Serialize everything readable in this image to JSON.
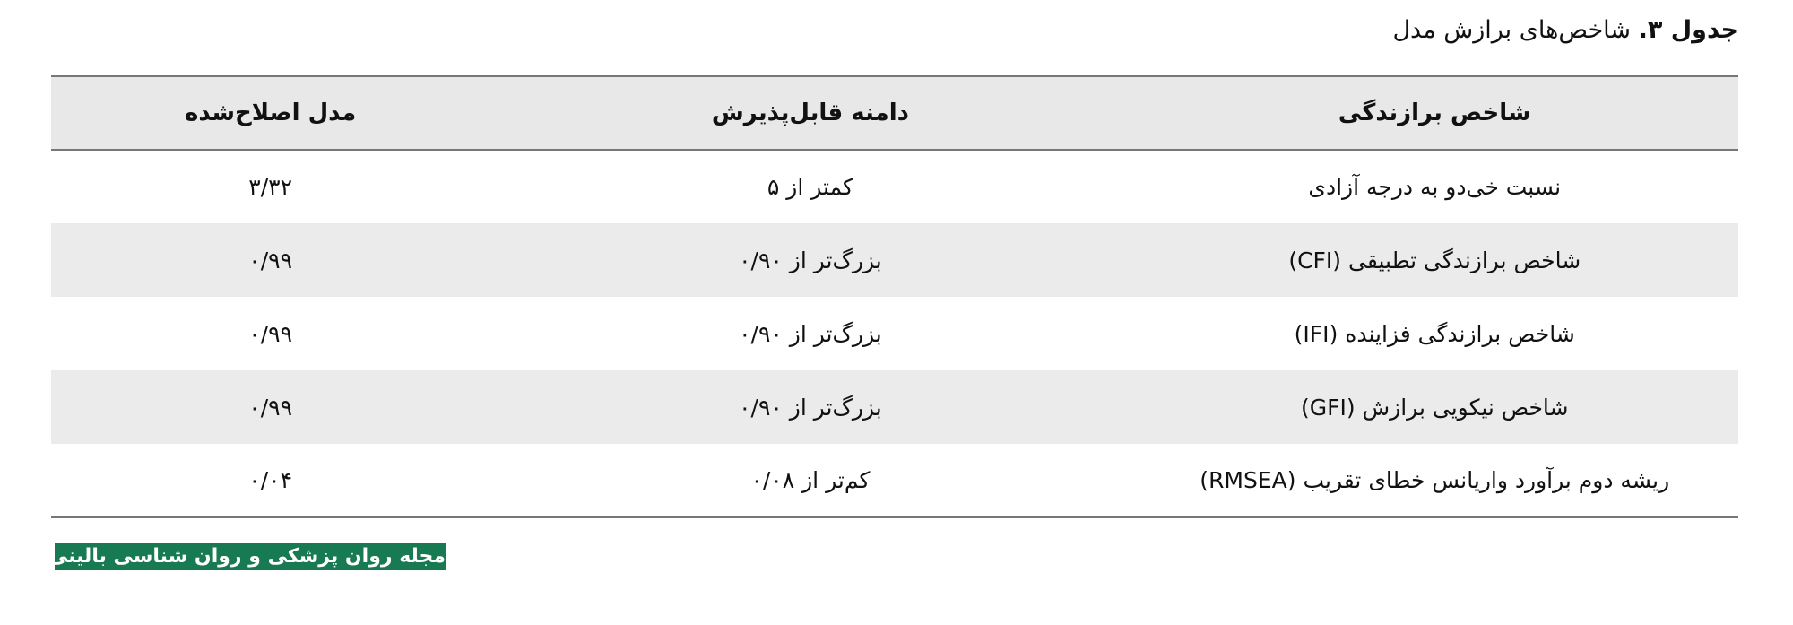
{
  "caption": {
    "label": "جدول ۳.",
    "title": "شاخص‌های برازش مدل"
  },
  "table": {
    "headers": [
      "شاخص برازندگی",
      "دامنه قابل‌پذیرش",
      "مدل اصلاح‌شده"
    ],
    "rows": [
      [
        "نسبت خی‌دو به درجه آزادی",
        "کمتر از ۵",
        "۳/۳۲"
      ],
      [
        "شاخص برازندگی تطبیقی (CFI)",
        "بزرگ‌تر از ۰/۹۰",
        "۰/۹۹"
      ],
      [
        "شاخص برازندگی فزاینده (IFI)",
        "بزرگ‌تر از ۰/۹۰",
        "۰/۹۹"
      ],
      [
        "شاخص نیکویی برازش (GFI)",
        "بزرگ‌تر از ۰/۹۰",
        "۰/۹۹"
      ],
      [
        "ریشه دوم برآورد واریانس خطای تقریب (RMSEA)",
        "کم‌تر از ۰/۰۸",
        "۰/۰۴"
      ]
    ]
  },
  "logo": {
    "text": "مجله روان پزشکی و روان شناسی بالینی ایران",
    "color": "#177a52"
  }
}
